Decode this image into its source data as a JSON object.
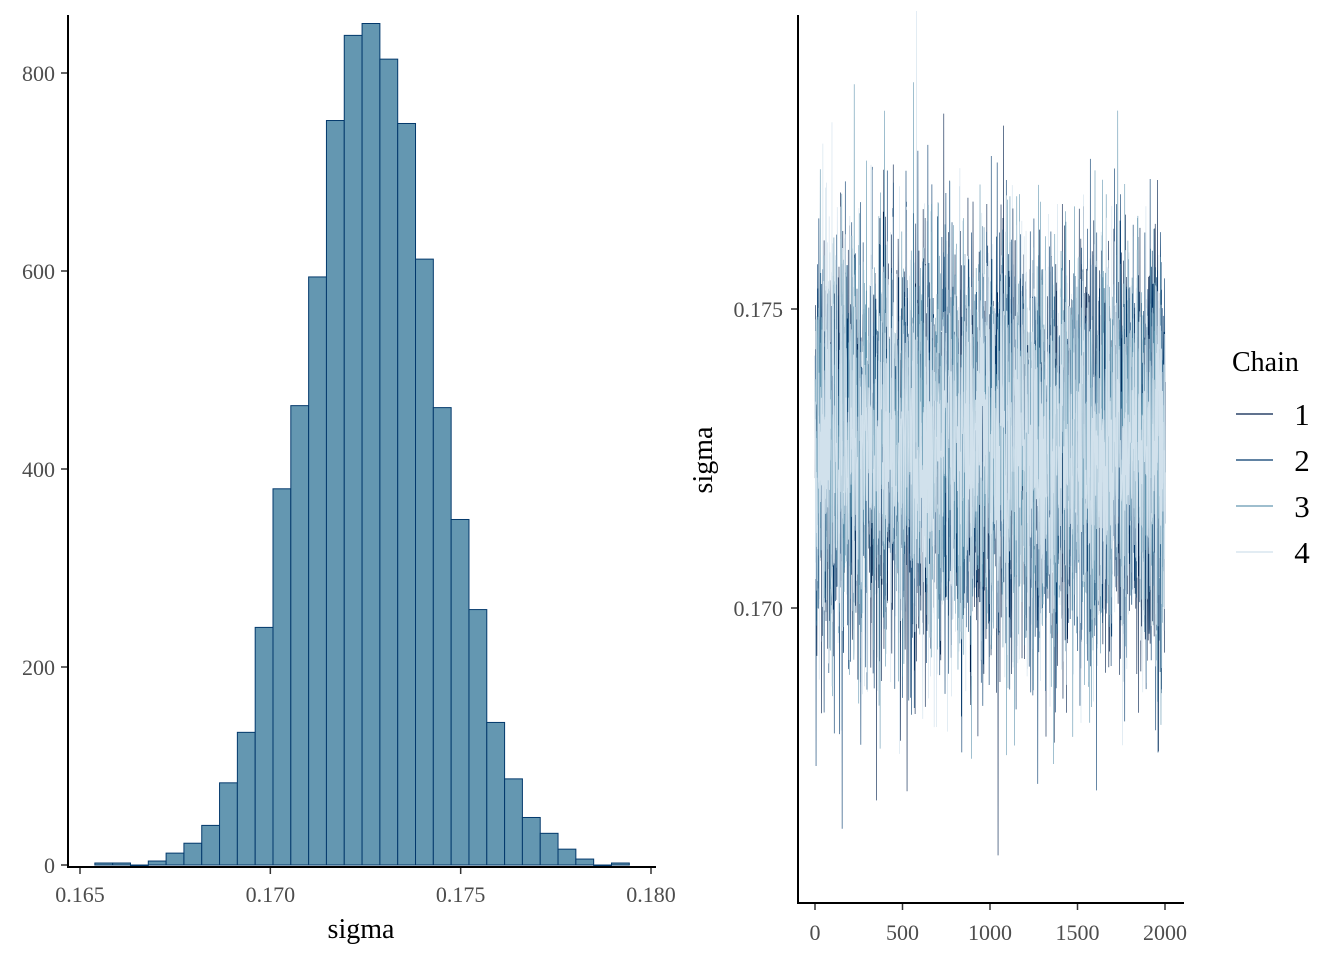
{
  "chart_data": [
    {
      "type": "bar",
      "subtype": "histogram",
      "xlabel": "sigma",
      "ylabel": "",
      "xlim": [
        0.1645,
        0.1802
      ],
      "ylim": [
        0,
        870
      ],
      "xticks": [
        "0.165",
        "0.170",
        "0.175",
        "0.180"
      ],
      "xtick_values": [
        0.165,
        0.17,
        0.175,
        0.18
      ],
      "yticks": [
        "0",
        "200",
        "400",
        "600",
        "800"
      ],
      "ytick_values": [
        0,
        200,
        400,
        600,
        800
      ],
      "bin_start": 0.16539,
      "bin_width": 0.000468,
      "counts": [
        2,
        2,
        0,
        4,
        12,
        22,
        40,
        83,
        134,
        240,
        380,
        464,
        594,
        752,
        838,
        850,
        814,
        749,
        612,
        462,
        349,
        258,
        144,
        87,
        48,
        32,
        16,
        6,
        0,
        2
      ],
      "fill": "#6497b1",
      "stroke": "#03396c",
      "grid": false
    },
    {
      "type": "line",
      "subtype": "trace",
      "xlabel": "",
      "ylabel": "sigma",
      "xlim": [
        -100,
        2100
      ],
      "ylim": [
        0.1667,
        0.1818
      ],
      "xticks": [
        "0",
        "500",
        "1000",
        "1500",
        "2000"
      ],
      "xtick_values": [
        0,
        500,
        1000,
        1500,
        2000
      ],
      "yticks": [
        "0.170",
        "0.175"
      ],
      "ytick_values": [
        0.17,
        0.175
      ],
      "iterations": 2000,
      "posterior_mean": 0.1727,
      "posterior_sd": 0.0017,
      "legend": {
        "title": "Chain",
        "position": "right"
      },
      "series": [
        {
          "name": "1",
          "color": "#011f4b"
        },
        {
          "name": "2",
          "color": "#03396c"
        },
        {
          "name": "3",
          "color": "#6497b1"
        },
        {
          "name": "4",
          "color": "#d1e1ec"
        }
      ],
      "grid": false
    }
  ]
}
